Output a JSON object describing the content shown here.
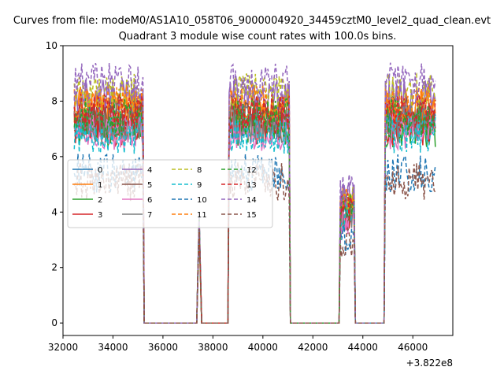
{
  "figure": {
    "suptitle": "Curves from file: modeM0/AS1A10_058T06_9000004920_34459cztM0_level2_quad_clean.evt"
  },
  "chart_data": {
    "type": "line",
    "title": "Quadrant 3 module wise count rates with 100.0s bins.",
    "xlabel": "",
    "ylabel": "",
    "x_offset_label": "+3.822e8",
    "xlim": [
      32000,
      47600
    ],
    "ylim": [
      -0.45,
      10
    ],
    "xticks": [
      32000,
      34000,
      36000,
      38000,
      40000,
      42000,
      44000,
      46000
    ],
    "xtick_labels": [
      "32000",
      "34000",
      "36000",
      "38000",
      "40000",
      "42000",
      "44000",
      "46000"
    ],
    "yticks": [
      0,
      2,
      4,
      6,
      8,
      10
    ],
    "ytick_labels": [
      "0",
      "2",
      "4",
      "6",
      "8",
      "10"
    ],
    "grid": false,
    "legend_position": "center-left",
    "legend_columns": 4,
    "segments": [
      {
        "from": 32450,
        "to": 35200,
        "kind": "high"
      },
      {
        "from": 35250,
        "to": 37300,
        "kind": "zero"
      },
      {
        "from": 37350,
        "to": 37550,
        "kind": "spike"
      },
      {
        "from": 37600,
        "to": 38600,
        "kind": "zero"
      },
      {
        "from": 38650,
        "to": 41050,
        "kind": "high"
      },
      {
        "from": 41100,
        "to": 43050,
        "kind": "zero"
      },
      {
        "from": 43100,
        "to": 43650,
        "kind": "mid"
      },
      {
        "from": 43700,
        "to": 44850,
        "kind": "zero"
      },
      {
        "from": 44900,
        "to": 46900,
        "kind": "high"
      }
    ],
    "series": [
      {
        "name": "0",
        "color": "#1f77b4",
        "dash": "solid",
        "level": 7.3
      },
      {
        "name": "1",
        "color": "#ff7f0e",
        "dash": "solid",
        "level": 7.8
      },
      {
        "name": "2",
        "color": "#2ca02c",
        "dash": "solid",
        "level": 7.0
      },
      {
        "name": "3",
        "color": "#d62728",
        "dash": "solid",
        "level": 7.1
      },
      {
        "name": "4",
        "color": "#9467bd",
        "dash": "solid",
        "level": 8.1
      },
      {
        "name": "5",
        "color": "#8c564b",
        "dash": "solid",
        "level": 7.5
      },
      {
        "name": "6",
        "color": "#e377c2",
        "dash": "solid",
        "level": 6.9
      },
      {
        "name": "7",
        "color": "#7f7f7f",
        "dash": "solid",
        "level": 7.2
      },
      {
        "name": "8",
        "color": "#bcbd22",
        "dash": "dashed",
        "level": 8.3
      },
      {
        "name": "9",
        "color": "#17becf",
        "dash": "dashed",
        "level": 6.8
      },
      {
        "name": "10",
        "color": "#1f77b4",
        "dash": "dashed",
        "level": 5.4
      },
      {
        "name": "11",
        "color": "#ff7f0e",
        "dash": "dashed",
        "level": 7.9
      },
      {
        "name": "12",
        "color": "#2ca02c",
        "dash": "dashed",
        "level": 7.4
      },
      {
        "name": "13",
        "color": "#d62728",
        "dash": "dashed",
        "level": 7.6
      },
      {
        "name": "14",
        "color": "#9467bd",
        "dash": "dashed",
        "level": 8.7
      },
      {
        "name": "15",
        "color": "#8c564b",
        "dash": "dashed",
        "level": 5.1
      }
    ]
  }
}
